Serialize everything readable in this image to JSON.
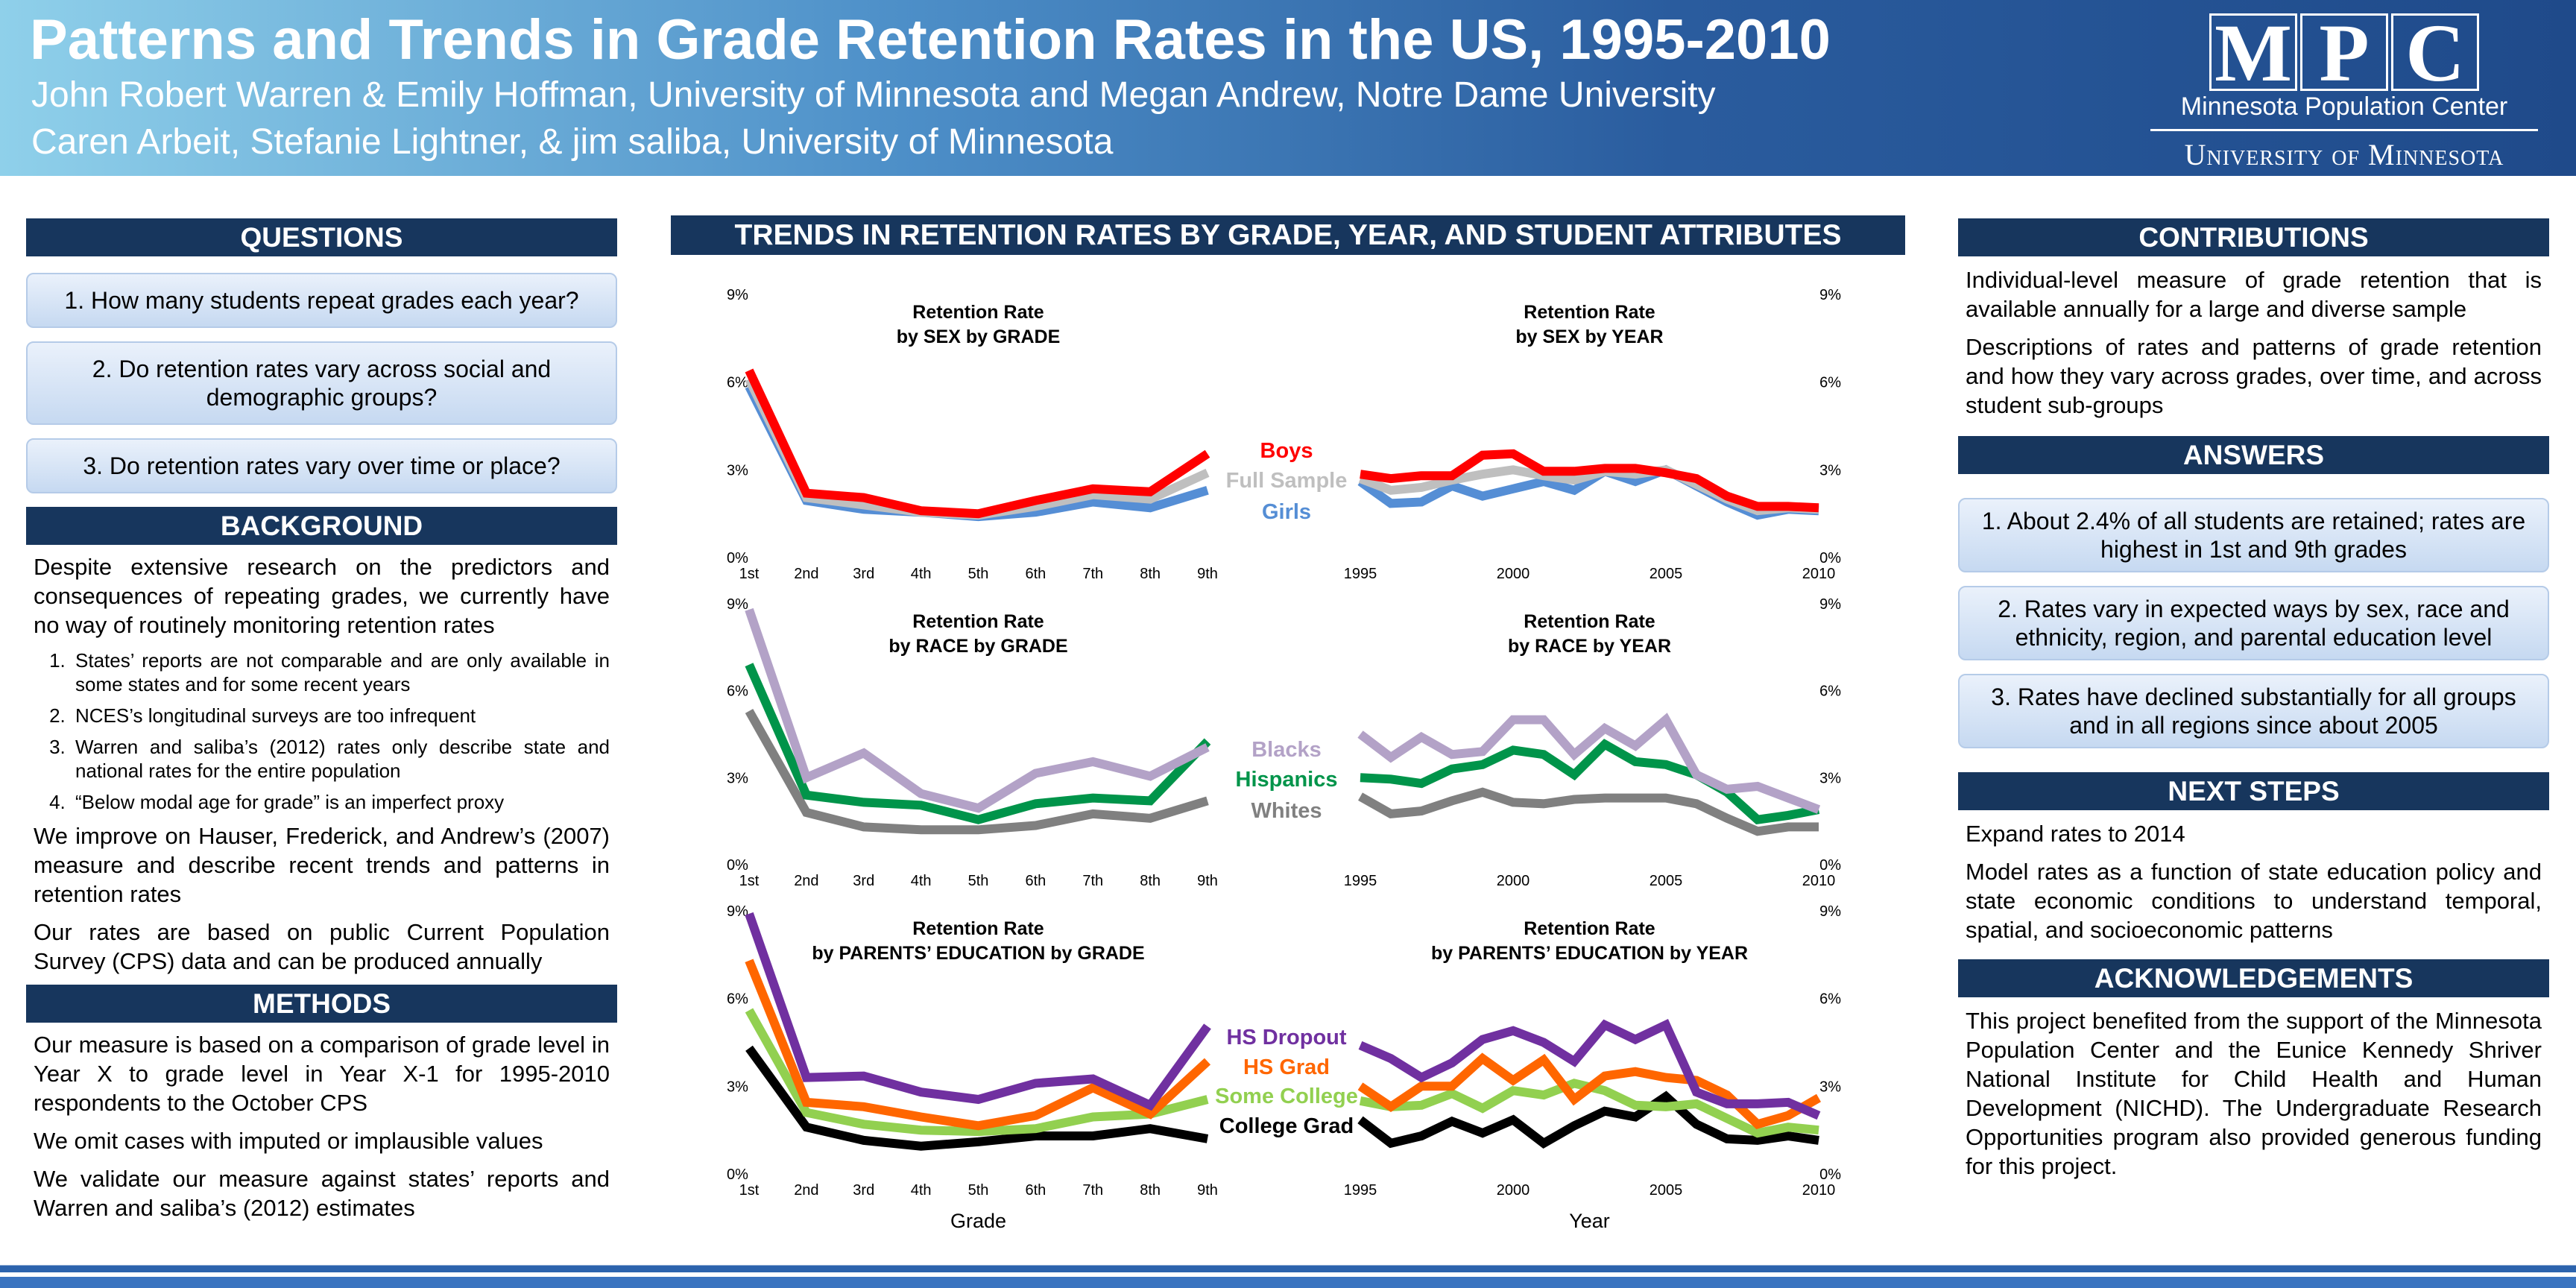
{
  "header": {
    "title": "Patterns and Trends in Grade Retention Rates in the US, 1995-2010",
    "authors_line1": "John Robert Warren & Emily Hoffman, University of Minnesota and Megan Andrew, Notre Dame University",
    "authors_line2": "Caren Arbeit, Stefanie Lightner, & jim saliba, University of Minnesota",
    "logo": {
      "letters": [
        "M",
        "P",
        "C"
      ],
      "name": "Minnesota Population Center",
      "university": "University of Minnesota"
    }
  },
  "questions": {
    "heading": "QUESTIONS",
    "items": [
      "1. How many students repeat grades each year?",
      "2. Do retention rates vary across social and demographic groups?",
      "3. Do retention rates vary over time or place?"
    ]
  },
  "background": {
    "heading": "BACKGROUND",
    "intro": "Despite extensive research on the predictors and consequences of repeating grades, we currently have no way of routinely monitoring retention rates",
    "list": [
      "States’ reports are not comparable and are only available in some states and for some recent years",
      "NCES’s longitudinal surveys are too infrequent",
      "Warren and saliba’s (2012) rates only describe state and national rates for the entire population",
      "“Below modal age for grade” is an imperfect proxy"
    ],
    "p2": "We improve on Hauser, Frederick, and Andrew’s (2007) measure and describe recent trends and patterns in retention rates",
    "p3": "Our rates are based on public Current Population Survey (CPS) data and can be produced annually"
  },
  "methods": {
    "heading": "METHODS",
    "paras": [
      "Our measure is based on a comparison of grade level in Year X to grade level in Year X-1 for 1995-2010 respondents to the October CPS",
      "We omit cases with imputed or implausible values",
      "We validate our measure against states’ reports and Warren and saliba’s (2012) estimates"
    ]
  },
  "middle": {
    "heading": "TRENDS IN RETENTION RATES BY GRADE, YEAR, AND STUDENT ATTRIBUTES",
    "xlabel_grade": "Grade",
    "xlabel_year": "Year"
  },
  "contributions": {
    "heading": "CONTRIBUTIONS",
    "paras": [
      "Individual-level measure of grade retention that is available annually for a large and diverse sample",
      "Descriptions of rates and patterns of grade retention and how they vary across grades, over time, and across student sub-groups"
    ]
  },
  "answers": {
    "heading": "ANSWERS",
    "items": [
      "1. About 2.4% of all students are retained; rates are highest in 1st and 9th grades",
      "2. Rates vary in expected ways by sex, race and ethnicity, region, and parental education level",
      "3. Rates have declined substantially for all groups and in all regions since about 2005"
    ]
  },
  "next_steps": {
    "heading": "NEXT STEPS",
    "paras": [
      "Expand rates to 2014",
      "Model rates as a function of state education policy and state economic conditions to understand temporal, spatial, and socioeconomic patterns"
    ]
  },
  "acknowledgements": {
    "heading": "ACKNOWLEDGEMENTS",
    "text": "This project benefited from the support of the Minnesota Population Center and the Eunice Kennedy Shriver National Institute for Child Health and Human Development (NICHD). The Undergraduate Research Opportunities program also provided generous funding for this project."
  },
  "chart_data": [
    {
      "type": "line",
      "title": "Retention Rate",
      "subtitle": "by SEX by GRADE",
      "categories": [
        "1st",
        "2nd",
        "3rd",
        "4th",
        "5th",
        "6th",
        "7th",
        "8th",
        "9th"
      ],
      "yticks": [
        "0%",
        "3%",
        "6%",
        "9%"
      ],
      "ylim": [
        0,
        9
      ],
      "series": [
        {
          "name": "Boys",
          "color": "#ff0000",
          "values": [
            6.4,
            2.2,
            2.05,
            1.6,
            1.5,
            1.95,
            2.35,
            2.25,
            3.55
          ]
        },
        {
          "name": "Full Sample",
          "color": "#bfbfbf",
          "values": [
            6.1,
            2.05,
            1.8,
            1.55,
            1.45,
            1.75,
            2.15,
            2.0,
            2.9
          ]
        },
        {
          "name": "Girls",
          "color": "#558ed5",
          "values": [
            5.85,
            1.95,
            1.65,
            1.55,
            1.4,
            1.55,
            1.9,
            1.7,
            2.3
          ]
        }
      ]
    },
    {
      "type": "line",
      "title": "Retention Rate",
      "subtitle": "by SEX by YEAR",
      "x": [
        1995,
        1996,
        1997,
        1998,
        1999,
        2000,
        2001,
        2002,
        2003,
        2004,
        2005,
        2006,
        2007,
        2008,
        2009,
        2010
      ],
      "xticks": [
        "1995",
        "2000",
        "2005",
        "2010"
      ],
      "yticks": [
        "0%",
        "3%",
        "6%",
        "9%"
      ],
      "ylim": [
        0,
        9
      ],
      "series": [
        {
          "name": "Boys",
          "color": "#ff0000",
          "values": [
            2.85,
            2.7,
            2.8,
            2.8,
            3.5,
            3.55,
            2.95,
            2.95,
            3.05,
            3.05,
            2.9,
            2.7,
            2.1,
            1.75,
            1.75,
            1.7
          ]
        },
        {
          "name": "Full Sample",
          "color": "#bfbfbf",
          "values": [
            2.7,
            2.3,
            2.4,
            2.65,
            2.85,
            3.0,
            2.8,
            2.65,
            2.95,
            2.85,
            3.0,
            2.5,
            2.0,
            1.6,
            1.7,
            1.65
          ]
        },
        {
          "name": "Girls",
          "color": "#558ed5",
          "values": [
            2.6,
            1.85,
            1.9,
            2.45,
            2.1,
            2.35,
            2.6,
            2.3,
            2.95,
            2.6,
            3.0,
            2.45,
            1.9,
            1.45,
            1.65,
            1.6
          ]
        }
      ]
    },
    {
      "type": "line",
      "title": "Retention Rate",
      "subtitle": "by RACE by GRADE",
      "categories": [
        "1st",
        "2nd",
        "3rd",
        "4th",
        "5th",
        "6th",
        "7th",
        "8th",
        "9th"
      ],
      "yticks": [
        "0%",
        "3%",
        "6%",
        "9%"
      ],
      "ylim": [
        0,
        9
      ],
      "series": [
        {
          "name": "Blacks",
          "color": "#b3a2c7",
          "values": [
            8.8,
            3.0,
            3.85,
            2.45,
            1.95,
            3.15,
            3.55,
            3.05,
            4.05
          ]
        },
        {
          "name": "Hispanics",
          "color": "#00944a",
          "values": [
            6.9,
            2.4,
            2.15,
            2.05,
            1.55,
            2.1,
            2.3,
            2.2,
            4.25
          ]
        },
        {
          "name": "Whites",
          "color": "#808080",
          "values": [
            5.3,
            1.8,
            1.3,
            1.2,
            1.2,
            1.35,
            1.75,
            1.6,
            2.2
          ]
        }
      ]
    },
    {
      "type": "line",
      "title": "Retention Rate",
      "subtitle": "by RACE by YEAR",
      "x": [
        1995,
        1996,
        1997,
        1998,
        1999,
        2000,
        2001,
        2002,
        2003,
        2004,
        2005,
        2006,
        2007,
        2008,
        2009,
        2010
      ],
      "xticks": [
        "1995",
        "2000",
        "2005",
        "2010"
      ],
      "yticks": [
        "0%",
        "3%",
        "6%",
        "9%"
      ],
      "ylim": [
        0,
        9
      ],
      "series": [
        {
          "name": "Blacks",
          "color": "#b3a2c7",
          "values": [
            4.5,
            3.7,
            4.4,
            3.8,
            3.9,
            5.0,
            5.0,
            3.8,
            4.7,
            4.1,
            5.0,
            3.1,
            2.6,
            2.7,
            2.3,
            1.9
          ]
        },
        {
          "name": "Hispanics",
          "color": "#00944a",
          "values": [
            3.0,
            2.95,
            2.8,
            3.3,
            3.45,
            3.95,
            3.8,
            3.1,
            4.15,
            3.55,
            3.45,
            3.1,
            2.5,
            1.55,
            1.7,
            1.9
          ]
        },
        {
          "name": "Whites",
          "color": "#808080",
          "values": [
            2.35,
            1.75,
            1.85,
            2.2,
            2.5,
            2.15,
            2.1,
            2.25,
            2.3,
            2.3,
            2.3,
            2.1,
            1.6,
            1.15,
            1.3,
            1.3
          ]
        }
      ]
    },
    {
      "type": "line",
      "title": "Retention Rate",
      "subtitle": "by PARENTS’ EDUCATION by GRADE",
      "xlabel": "Grade",
      "categories": [
        "1st",
        "2nd",
        "3rd",
        "4th",
        "5th",
        "6th",
        "7th",
        "8th",
        "9th"
      ],
      "yticks": [
        "0%",
        "3%",
        "6%",
        "9%"
      ],
      "ylim": [
        0,
        9
      ],
      "series": [
        {
          "name": "HS Dropout",
          "color": "#7030a0",
          "values": [
            8.9,
            3.3,
            3.35,
            2.8,
            2.55,
            3.1,
            3.25,
            2.35,
            5.05
          ]
        },
        {
          "name": "HS Grad",
          "color": "#ff6600",
          "values": [
            7.3,
            2.45,
            2.3,
            1.95,
            1.65,
            2.0,
            2.95,
            2.05,
            3.85
          ]
        },
        {
          "name": "Some College",
          "color": "#92d050",
          "values": [
            5.6,
            2.1,
            1.7,
            1.5,
            1.45,
            1.55,
            1.95,
            2.05,
            2.55
          ]
        },
        {
          "name": "College Grad",
          "color": "#000000",
          "values": [
            4.3,
            1.6,
            1.15,
            0.95,
            1.1,
            1.3,
            1.3,
            1.55,
            1.2
          ]
        }
      ]
    },
    {
      "type": "line",
      "title": "Retention Rate",
      "subtitle": "by PARENTS’ EDUCATION by YEAR",
      "xlabel": "Year",
      "x": [
        1995,
        1996,
        1997,
        1998,
        1999,
        2000,
        2001,
        2002,
        2003,
        2004,
        2005,
        2006,
        2007,
        2008,
        2009,
        2010
      ],
      "xticks": [
        "1995",
        "2000",
        "2005",
        "2010"
      ],
      "yticks": [
        "0%",
        "3%",
        "6%",
        "9%"
      ],
      "ylim": [
        0,
        9
      ],
      "series": [
        {
          "name": "HS Dropout",
          "color": "#7030a0",
          "values": [
            4.4,
            3.95,
            3.3,
            3.8,
            4.6,
            4.9,
            4.5,
            3.85,
            5.1,
            4.6,
            5.1,
            2.8,
            2.4,
            2.4,
            2.45,
            2.0
          ]
        },
        {
          "name": "HS Grad",
          "color": "#ff6600",
          "values": [
            3.0,
            2.3,
            3.0,
            3.0,
            3.95,
            3.2,
            3.9,
            2.55,
            3.35,
            3.5,
            3.3,
            3.2,
            2.7,
            1.7,
            2.0,
            2.6
          ]
        },
        {
          "name": "Some College",
          "color": "#92d050",
          "values": [
            2.5,
            2.3,
            2.35,
            2.75,
            2.25,
            2.85,
            2.7,
            3.1,
            2.85,
            2.35,
            2.3,
            2.4,
            1.9,
            1.4,
            1.6,
            1.5
          ]
        },
        {
          "name": "College Grad",
          "color": "#000000",
          "values": [
            1.85,
            1.05,
            1.3,
            1.8,
            1.4,
            1.85,
            1.05,
            1.65,
            2.15,
            1.95,
            2.65,
            1.7,
            1.2,
            1.15,
            1.3,
            1.15
          ]
        }
      ]
    }
  ]
}
